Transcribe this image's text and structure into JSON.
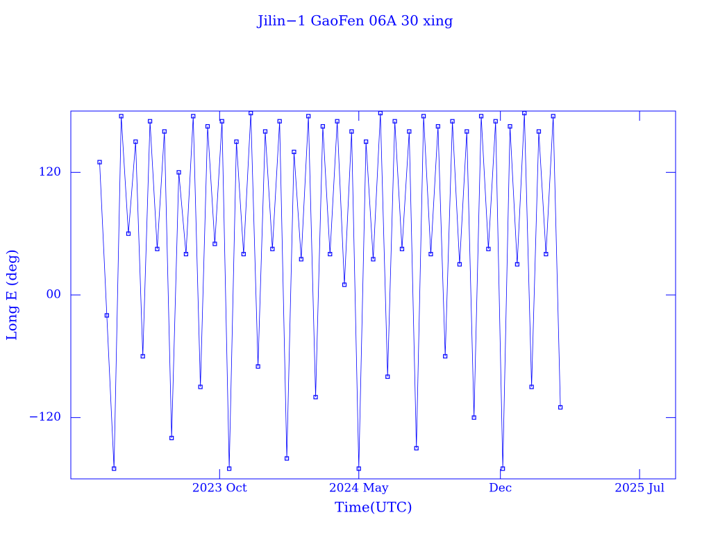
{
  "chart_data": {
    "type": "line",
    "title": "Jilin−1 GaoFen 06A 30 xing",
    "x_label": "Time(UTC)",
    "y_label": "Long E (deg)",
    "xlim": [
      2023.13,
      2025.65
    ],
    "xticks": [
      {
        "value": 2023.75,
        "label": "2023 Oct"
      },
      {
        "value": 2024.33,
        "label": "2024 May"
      },
      {
        "value": 2024.92,
        "label": "Dec"
      },
      {
        "value": 2025.5,
        "label": "2025 Jul"
      }
    ],
    "ylim": [
      -180,
      180
    ],
    "yticks": [
      {
        "value": -120,
        "label": "−120"
      },
      {
        "value": 0,
        "label": "00"
      },
      120
    ],
    "color": "#0000ff",
    "x": [
      2023.25,
      2023.28,
      2023.31,
      2023.34,
      2023.37,
      2023.4,
      2023.43,
      2023.46,
      2023.49,
      2023.52,
      2023.55,
      2023.58,
      2023.61,
      2023.64,
      2023.67,
      2023.7,
      2023.73,
      2023.76,
      2023.79,
      2023.82,
      2023.85,
      2023.88,
      2023.91,
      2023.94,
      2023.97,
      2024.0,
      2024.03,
      2024.06,
      2024.09,
      2024.12,
      2024.15,
      2024.18,
      2024.21,
      2024.24,
      2024.27,
      2024.3,
      2024.33,
      2024.36,
      2024.39,
      2024.42,
      2024.45,
      2024.48,
      2024.51,
      2024.54,
      2024.57,
      2024.6,
      2024.63,
      2024.66,
      2024.69,
      2024.72,
      2024.75,
      2024.78,
      2024.81,
      2024.84,
      2024.87,
      2024.9,
      2024.93,
      2024.96,
      2024.99,
      2025.02,
      2025.05,
      2025.08,
      2025.11,
      2025.14,
      2025.17
    ],
    "values": [
      130,
      -20,
      -170,
      175,
      60,
      150,
      -60,
      170,
      45,
      160,
      -140,
      120,
      40,
      175,
      -90,
      165,
      50,
      170,
      -170,
      150,
      40,
      178,
      -70,
      160,
      45,
      170,
      -160,
      140,
      35,
      175,
      -100,
      165,
      40,
      170,
      10,
      160,
      -170,
      150,
      35,
      178,
      -80,
      170,
      45,
      160,
      -150,
      175,
      40,
      165,
      -60,
      170,
      30,
      160,
      -120,
      175,
      45,
      170,
      -170,
      165,
      30,
      178,
      -90,
      160,
      40,
      175,
      -110
    ]
  }
}
